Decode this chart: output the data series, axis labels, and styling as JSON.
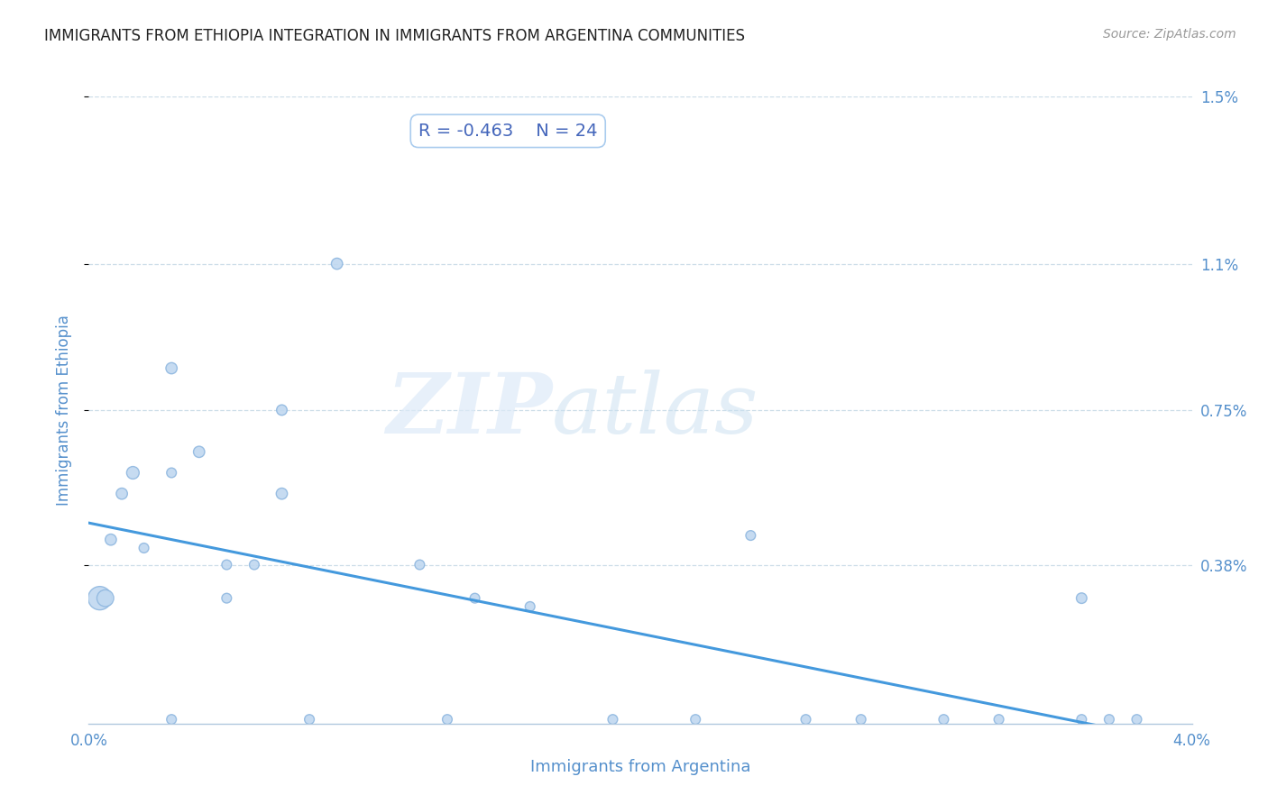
{
  "title": "IMMIGRANTS FROM ETHIOPIA INTEGRATION IN IMMIGRANTS FROM ARGENTINA COMMUNITIES",
  "source": "Source: ZipAtlas.com",
  "xlabel": "Immigrants from Argentina",
  "ylabel": "Immigrants from Ethiopia",
  "R_val": -0.463,
  "N_val": 24,
  "xlim": [
    0.0,
    0.04
  ],
  "ylim": [
    0.0,
    0.015
  ],
  "ytick_vals": [
    0.0038,
    0.0075,
    0.011,
    0.015
  ],
  "ytick_labels": [
    "0.38%",
    "0.75%",
    "1.1%",
    "1.5%"
  ],
  "grid_color": "#ccdde8",
  "point_color": "#c0d8f0",
  "point_edge_color": "#90b8e0",
  "line_color": "#4499dd",
  "background_color": "#ffffff",
  "watermark_zip": "ZIP",
  "watermark_atlas": "atlas",
  "scatter_x": [
    0.0004,
    0.0006,
    0.0008,
    0.0012,
    0.0016,
    0.002,
    0.003,
    0.003,
    0.004,
    0.005,
    0.005,
    0.006,
    0.007,
    0.007,
    0.009,
    0.012,
    0.014,
    0.016,
    0.019,
    0.024,
    0.036
  ],
  "scatter_y": [
    0.003,
    0.003,
    0.0044,
    0.0055,
    0.006,
    0.0042,
    0.0085,
    0.006,
    0.0065,
    0.0038,
    0.003,
    0.0038,
    0.0075,
    0.0055,
    0.011,
    0.0038,
    0.003,
    0.0028,
    0.0001,
    0.0045,
    0.003
  ],
  "scatter_sizes": [
    350,
    180,
    80,
    80,
    100,
    60,
    80,
    60,
    80,
    60,
    60,
    60,
    70,
    80,
    80,
    60,
    60,
    60,
    60,
    60,
    70
  ],
  "scatter_x_bottom": [
    0.003,
    0.008,
    0.013,
    0.022,
    0.026,
    0.028,
    0.031,
    0.033,
    0.036,
    0.037,
    0.038
  ],
  "scatter_y_bottom": [
    0.0001,
    0.0001,
    0.0001,
    0.0001,
    0.0001,
    0.0001,
    0.0001,
    0.0001,
    0.0001,
    0.0001,
    0.0001
  ],
  "scatter_sizes_bottom": [
    60,
    60,
    60,
    60,
    60,
    60,
    60,
    60,
    60,
    60,
    60
  ],
  "regression_x_start": 0.0,
  "regression_x_end": 0.04,
  "regression_y_start": 0.0048,
  "regression_y_end": -0.0005,
  "axis_color": "#5590cc",
  "title_color": "#222222",
  "source_color": "#999999"
}
